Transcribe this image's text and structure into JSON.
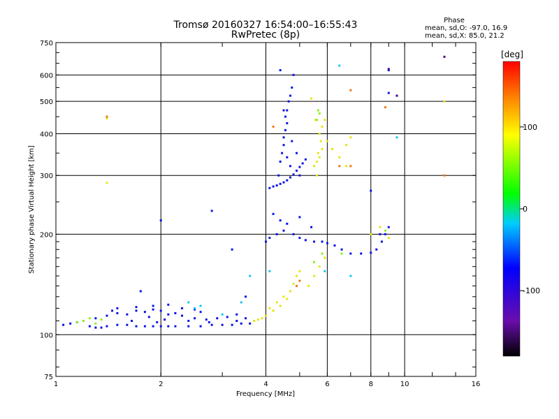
{
  "chart_data": {
    "type": "scatter",
    "title": "Tromsø 20160327 16:54:00–16:55:43",
    "subtitle": "RwPretec (8p)",
    "xlabel": "Frequency [MHz]",
    "ylabel": "Stationary phase Virtual Height [km]",
    "x_scale": "log",
    "y_scale": "log",
    "xlim": [
      1,
      16
    ],
    "ylim": [
      75,
      750
    ],
    "x_ticks": [
      1,
      2,
      4,
      6,
      8,
      10,
      16
    ],
    "x_tick_labels": [
      "1",
      "2",
      "4",
      "6",
      "8",
      "10",
      "16"
    ],
    "y_ticks": [
      75,
      100,
      200,
      300,
      400,
      500,
      600,
      750
    ],
    "y_tick_labels": [
      "75",
      "100",
      "200",
      "300",
      "400",
      "500",
      "600",
      "750"
    ],
    "grid": true,
    "phase_info": {
      "heading": "Phase",
      "line_o": "mean, sd,O: -97.0, 16.9",
      "line_x": "mean, sd,X:  85.0, 21.2"
    },
    "colorbar": {
      "label": "[deg]",
      "min": -180,
      "max": 180,
      "ticks": [
        100,
        0,
        -100
      ],
      "tick_labels": [
        "100",
        "0",
        "-100"
      ],
      "colormap": "rainbow"
    },
    "series": [
      {
        "phase": -97,
        "color": "#0a14e6",
        "points": [
          [
            1.05,
            107
          ],
          [
            1.1,
            108
          ],
          [
            1.15,
            109
          ],
          [
            1.2,
            110
          ],
          [
            1.25,
            106
          ],
          [
            1.3,
            105
          ],
          [
            1.35,
            105
          ],
          [
            1.4,
            106
          ],
          [
            1.5,
            107
          ],
          [
            1.6,
            107
          ],
          [
            1.7,
            106
          ],
          [
            1.8,
            106
          ],
          [
            1.9,
            106
          ],
          [
            2.0,
            106
          ],
          [
            2.1,
            106
          ],
          [
            2.2,
            106
          ],
          [
            2.4,
            106
          ],
          [
            2.6,
            106
          ],
          [
            2.8,
            107
          ],
          [
            3.0,
            107
          ],
          [
            3.2,
            107
          ],
          [
            3.4,
            108
          ],
          [
            3.6,
            108
          ],
          [
            1.3,
            112
          ],
          [
            1.4,
            114
          ],
          [
            1.5,
            116
          ],
          [
            1.6,
            115
          ],
          [
            1.7,
            118
          ],
          [
            1.8,
            117
          ],
          [
            1.9,
            119
          ],
          [
            2.0,
            118
          ],
          [
            2.1,
            115
          ],
          [
            2.2,
            116
          ],
          [
            2.3,
            114
          ],
          [
            2.5,
            112
          ],
          [
            2.7,
            111
          ],
          [
            2.9,
            112
          ],
          [
            3.1,
            113
          ],
          [
            3.3,
            115
          ],
          [
            3.5,
            112
          ],
          [
            1.5,
            120
          ],
          [
            1.7,
            121
          ],
          [
            1.9,
            122
          ],
          [
            2.1,
            123
          ],
          [
            2.3,
            120
          ],
          [
            2.5,
            119
          ],
          [
            2.6,
            117
          ],
          [
            1.45,
            118
          ],
          [
            1.85,
            113
          ],
          [
            2.05,
            111
          ],
          [
            2.4,
            110
          ],
          [
            2.75,
            109
          ],
          [
            3.3,
            110
          ],
          [
            1.65,
            110
          ],
          [
            1.95,
            109
          ],
          [
            4.1,
            275
          ],
          [
            4.2,
            278
          ],
          [
            4.3,
            280
          ],
          [
            4.4,
            283
          ],
          [
            4.5,
            286
          ],
          [
            4.6,
            290
          ],
          [
            4.7,
            296
          ],
          [
            4.8,
            302
          ],
          [
            4.9,
            310
          ],
          [
            5.0,
            318
          ],
          [
            5.1,
            326
          ],
          [
            5.2,
            335
          ],
          [
            4.4,
            330
          ],
          [
            4.45,
            350
          ],
          [
            4.5,
            370
          ],
          [
            4.5,
            390
          ],
          [
            4.55,
            410
          ],
          [
            4.6,
            430
          ],
          [
            4.55,
            450
          ],
          [
            4.6,
            470
          ],
          [
            4.65,
            500
          ],
          [
            4.7,
            520
          ],
          [
            4.75,
            550
          ],
          [
            4.8,
            600
          ],
          [
            4.4,
            620
          ],
          [
            4.5,
            470
          ],
          [
            4.6,
            340
          ],
          [
            4.7,
            320
          ],
          [
            4.75,
            380
          ],
          [
            4.9,
            350
          ],
          [
            5.0,
            300
          ],
          [
            4.35,
            300
          ],
          [
            4.0,
            190
          ],
          [
            4.1,
            195
          ],
          [
            4.3,
            200
          ],
          [
            4.5,
            205
          ],
          [
            4.8,
            200
          ],
          [
            5.0,
            195
          ],
          [
            5.2,
            192
          ],
          [
            5.5,
            190
          ],
          [
            5.8,
            190
          ],
          [
            6.0,
            188
          ],
          [
            6.3,
            185
          ],
          [
            6.6,
            180
          ],
          [
            7.0,
            175
          ],
          [
            7.5,
            175
          ],
          [
            8.0,
            176
          ],
          [
            8.3,
            180
          ],
          [
            8.6,
            190
          ],
          [
            8.8,
            200
          ],
          [
            9.0,
            210
          ],
          [
            8.5,
            200
          ],
          [
            4.2,
            230
          ],
          [
            4.4,
            220
          ],
          [
            4.6,
            215
          ],
          [
            5.0,
            225
          ],
          [
            5.4,
            210
          ],
          [
            2.0,
            220
          ],
          [
            2.8,
            235
          ],
          [
            3.2,
            180
          ],
          [
            1.75,
            135
          ],
          [
            3.5,
            130
          ],
          [
            9.0,
            620
          ],
          [
            9.0,
            530
          ],
          [
            8.0,
            270
          ]
        ]
      },
      {
        "phase": 85,
        "color": "#e6e614",
        "points": [
          [
            3.7,
            110
          ],
          [
            3.9,
            112
          ],
          [
            4.0,
            114
          ],
          [
            4.2,
            118
          ],
          [
            4.4,
            122
          ],
          [
            4.6,
            128
          ],
          [
            4.7,
            135
          ],
          [
            4.8,
            142
          ],
          [
            4.9,
            150
          ],
          [
            5.0,
            155
          ],
          [
            4.5,
            130
          ],
          [
            4.3,
            125
          ],
          [
            4.1,
            120
          ],
          [
            3.8,
            111
          ],
          [
            5.5,
            320
          ],
          [
            5.6,
            330
          ],
          [
            5.7,
            340
          ],
          [
            5.8,
            360
          ],
          [
            5.75,
            380
          ],
          [
            5.7,
            400
          ],
          [
            5.8,
            420
          ],
          [
            5.9,
            440
          ],
          [
            5.6,
            300
          ],
          [
            5.65,
            350
          ],
          [
            6.0,
            380
          ],
          [
            6.2,
            360
          ],
          [
            6.5,
            340
          ],
          [
            6.8,
            370
          ],
          [
            7.0,
            390
          ],
          [
            5.55,
            440
          ],
          [
            5.4,
            510
          ],
          [
            5.5,
            150
          ],
          [
            5.7,
            160
          ],
          [
            5.9,
            170
          ],
          [
            5.3,
            140
          ],
          [
            1.4,
            285
          ],
          [
            1.4,
            445
          ],
          [
            6.8,
            320
          ],
          [
            8.0,
            200
          ],
          [
            8.5,
            210
          ],
          [
            9.0,
            195
          ],
          [
            13.0,
            500
          ]
        ]
      },
      {
        "phase": 20,
        "color": "#8cf01e",
        "points": [
          [
            1.2,
            110
          ],
          [
            1.25,
            112
          ],
          [
            1.3,
            108
          ],
          [
            1.35,
            111
          ],
          [
            1.15,
            109
          ],
          [
            5.6,
            440
          ],
          [
            5.7,
            460
          ],
          [
            5.65,
            470
          ],
          [
            5.5,
            165
          ],
          [
            5.8,
            175
          ],
          [
            8.8,
            205
          ],
          [
            6.6,
            175
          ]
        ]
      },
      {
        "phase": -40,
        "color": "#14c8f0",
        "points": [
          [
            2.5,
            120
          ],
          [
            2.6,
            122
          ],
          [
            3.0,
            115
          ],
          [
            3.4,
            125
          ],
          [
            3.6,
            150
          ],
          [
            6.5,
            640
          ],
          [
            7.0,
            150
          ],
          [
            9.5,
            390
          ],
          [
            5.9,
            155
          ],
          [
            2.4,
            125
          ],
          [
            4.1,
            155
          ]
        ]
      },
      {
        "phase": 150,
        "color": "#f07814",
        "points": [
          [
            1.4,
            450
          ],
          [
            4.9,
            140
          ],
          [
            5.0,
            145
          ],
          [
            7.0,
            540
          ],
          [
            7.0,
            320
          ],
          [
            8.8,
            480
          ],
          [
            13.0,
            300
          ],
          [
            6.5,
            320
          ],
          [
            4.2,
            420
          ]
        ]
      },
      {
        "phase": -170,
        "color": "#4b0082",
        "points": [
          [
            9.0,
            625
          ],
          [
            13.0,
            680
          ],
          [
            9.5,
            520
          ]
        ]
      }
    ]
  }
}
